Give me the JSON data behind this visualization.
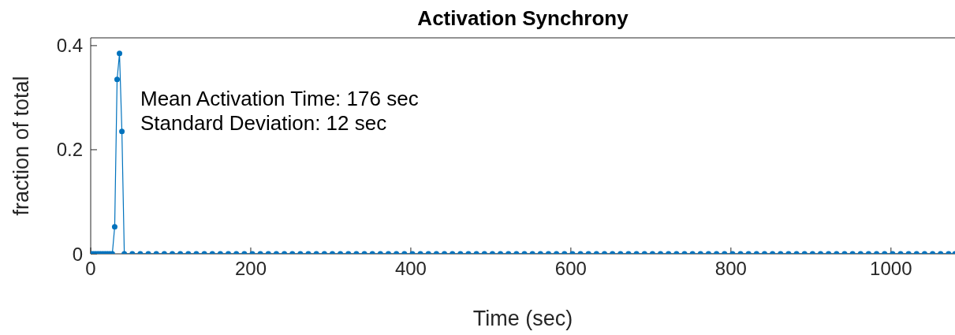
{
  "chart_data": {
    "type": "line",
    "title": "Activation Synchrony",
    "xlabel": "Time (sec)",
    "ylabel": "fraction of total",
    "annotations": [
      "Mean Activation Time: 176 sec",
      "Standard Deviation: 12 sec"
    ],
    "x": [
      0,
      3,
      6,
      9,
      12,
      15,
      18,
      21,
      24,
      27,
      30,
      33,
      36,
      39,
      42,
      52,
      62,
      72,
      82,
      92,
      102,
      112,
      122,
      132,
      142,
      152,
      162,
      172,
      182,
      192,
      202,
      212,
      222,
      232,
      242,
      252,
      262,
      272,
      282,
      292,
      302,
      312,
      322,
      332,
      342,
      352,
      362,
      372,
      382,
      392,
      402,
      412,
      422,
      432,
      442,
      452,
      462,
      472,
      482,
      492,
      502,
      512,
      522,
      532,
      542,
      552,
      562,
      572,
      582,
      592,
      602,
      612,
      622,
      632,
      642,
      652,
      662,
      672,
      682,
      692,
      702,
      712,
      722,
      732,
      742,
      752,
      762,
      772,
      782,
      792,
      802,
      812,
      822,
      832,
      842,
      852,
      862,
      872,
      882,
      892,
      902,
      912,
      922,
      932,
      942,
      952,
      962,
      972,
      982,
      992,
      1002,
      1012,
      1022,
      1032,
      1042,
      1052,
      1062,
      1072,
      1080
    ],
    "series": [
      {
        "color": "#0072bd",
        "values": [
          0,
          0,
          0,
          0,
          0,
          0,
          0,
          0,
          0,
          0,
          0.052,
          0.335,
          0.385,
          0.235,
          0,
          0,
          0,
          0,
          0,
          0,
          0,
          0,
          0,
          0,
          0,
          0,
          0,
          0,
          0,
          0,
          0,
          0,
          0,
          0,
          0,
          0,
          0,
          0,
          0,
          0,
          0,
          0,
          0,
          0,
          0,
          0,
          0,
          0,
          0,
          0,
          0,
          0,
          0,
          0,
          0,
          0,
          0,
          0,
          0,
          0,
          0,
          0,
          0,
          0,
          0,
          0,
          0,
          0,
          0,
          0,
          0,
          0,
          0,
          0,
          0,
          0,
          0,
          0,
          0,
          0,
          0,
          0,
          0,
          0,
          0,
          0,
          0,
          0,
          0,
          0,
          0,
          0,
          0,
          0,
          0,
          0,
          0,
          0,
          0,
          0,
          0,
          0,
          0,
          0,
          0,
          0,
          0,
          0,
          0,
          0,
          0,
          0,
          0,
          0,
          0,
          0,
          0,
          0,
          0
        ]
      }
    ],
    "xlim": [
      0,
      1080
    ],
    "xticks": [
      0,
      200,
      400,
      600,
      800,
      1000
    ],
    "ylim": [
      0,
      0.415
    ],
    "yticks": [
      0,
      0.2,
      0.4
    ],
    "marker": "circle",
    "line_style": "solid",
    "grid": false
  }
}
